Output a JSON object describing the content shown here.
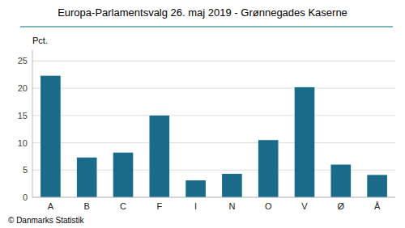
{
  "chart_data": {
    "type": "bar",
    "title": "Europa-Parlamentsvalg 26. maj 2019 - Grønnegades Kaserne",
    "ylabel": "Pct.",
    "annotations": [
      "© Danmarks Statistik"
    ],
    "categories": [
      "A",
      "B",
      "C",
      "F",
      "I",
      "N",
      "O",
      "V",
      "Ø",
      "Å"
    ],
    "values": [
      22.3,
      7.3,
      8.2,
      15.0,
      3.1,
      4.3,
      10.5,
      20.2,
      6.0,
      4.1
    ],
    "color": "#1a6b8a",
    "ylim": [
      0,
      27
    ],
    "yticks": [
      0,
      5,
      10,
      15,
      20,
      25
    ],
    "grid": true
  }
}
